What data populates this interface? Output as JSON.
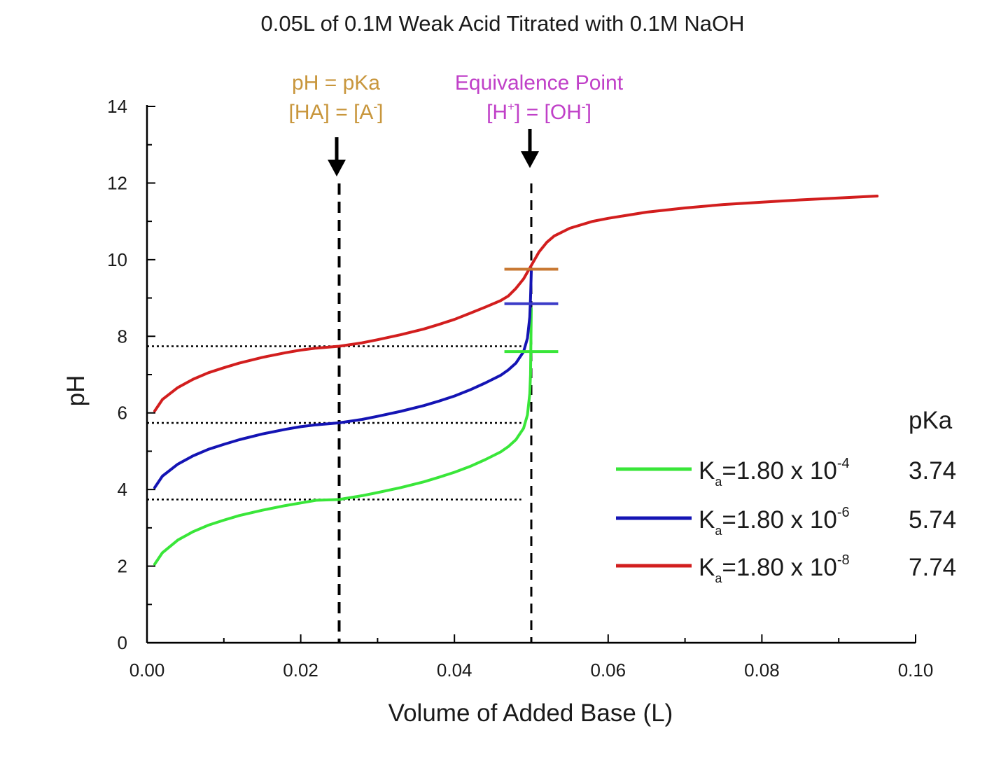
{
  "chart_data": {
    "type": "line",
    "title": "0.05L of 0.1M Weak Acid Titrated with 0.1M NaOH",
    "xlabel": "Volume of Added Base (L)",
    "ylabel": "pH",
    "xlim": [
      0,
      0.1
    ],
    "ylim": [
      0,
      14
    ],
    "x_ticks": [
      "0.00",
      "0.02",
      "0.04",
      "0.06",
      "0.08",
      "0.10"
    ],
    "y_ticks": [
      "0",
      "2",
      "4",
      "6",
      "8",
      "10",
      "12",
      "14"
    ],
    "grid": false,
    "legend_position": "bottom-right",
    "legend_header": "pKa",
    "annotations": {
      "half_equivalence": {
        "line1": "pH = pKa",
        "line2a": "[HA] = [A",
        "line2b": "-",
        "line2c": "]",
        "x": 0.025,
        "color": "#c8963c"
      },
      "equivalence": {
        "line1": "Equivalence Point",
        "line2a": "[H",
        "line2b": "+",
        "line2c": "] = [OH",
        "line2d": "-",
        "line2e": "]",
        "x": 0.05,
        "color": "#c040c8"
      }
    },
    "series": [
      {
        "name": "Ka=1.80 x 10-4",
        "ka_mantissa": "1.80 x 10",
        "ka_exponent": "-4",
        "pka": "3.74",
        "color": "#39e639",
        "marker_y": 7.6,
        "x": [
          0.001,
          0.002,
          0.004,
          0.006,
          0.008,
          0.01,
          0.012,
          0.015,
          0.018,
          0.02,
          0.022,
          0.025,
          0.028,
          0.03,
          0.033,
          0.036,
          0.038,
          0.04,
          0.042,
          0.044,
          0.046,
          0.047,
          0.048,
          0.049,
          0.0495,
          0.0498,
          0.0499,
          0.05
        ],
        "y": [
          2.05,
          2.35,
          2.68,
          2.9,
          3.07,
          3.2,
          3.32,
          3.46,
          3.58,
          3.65,
          3.72,
          3.74,
          3.84,
          3.92,
          4.05,
          4.2,
          4.32,
          4.45,
          4.6,
          4.78,
          4.98,
          5.12,
          5.3,
          5.6,
          5.95,
          6.5,
          7.0,
          8.72
        ]
      },
      {
        "name": "Ka=1.80 x 10-6",
        "ka_mantissa": "1.80 x 10",
        "ka_exponent": "-6",
        "pka": "5.74",
        "color": "#1414b4",
        "marker_y": 8.85,
        "x": [
          0.001,
          0.002,
          0.004,
          0.006,
          0.008,
          0.01,
          0.012,
          0.015,
          0.018,
          0.02,
          0.022,
          0.025,
          0.028,
          0.03,
          0.033,
          0.036,
          0.038,
          0.04,
          0.042,
          0.044,
          0.046,
          0.047,
          0.048,
          0.049,
          0.0495,
          0.0498,
          0.0499,
          0.05
        ],
        "y": [
          4.05,
          4.35,
          4.66,
          4.88,
          5.05,
          5.18,
          5.3,
          5.45,
          5.57,
          5.64,
          5.69,
          5.74,
          5.83,
          5.91,
          6.04,
          6.19,
          6.31,
          6.44,
          6.6,
          6.78,
          6.98,
          7.12,
          7.3,
          7.6,
          7.95,
          8.5,
          9.0,
          9.7
        ]
      },
      {
        "name": "Ka=1.80 x 10-8",
        "ka_mantissa": "1.80 x 10",
        "ka_exponent": "-8",
        "pka": "7.74",
        "color": "#d21e1e",
        "marker_y": 9.75,
        "x": [
          0.001,
          0.002,
          0.004,
          0.006,
          0.008,
          0.01,
          0.012,
          0.015,
          0.018,
          0.02,
          0.022,
          0.025,
          0.028,
          0.03,
          0.033,
          0.036,
          0.038,
          0.04,
          0.042,
          0.044,
          0.046,
          0.047,
          0.048,
          0.049,
          0.05,
          0.051,
          0.052,
          0.053,
          0.055,
          0.058,
          0.06,
          0.065,
          0.07,
          0.075,
          0.08,
          0.085,
          0.09,
          0.095
        ],
        "y": [
          6.05,
          6.35,
          6.66,
          6.88,
          7.05,
          7.18,
          7.3,
          7.45,
          7.57,
          7.64,
          7.69,
          7.74,
          7.83,
          7.91,
          8.04,
          8.19,
          8.31,
          8.44,
          8.6,
          8.76,
          8.93,
          9.05,
          9.25,
          9.5,
          9.85,
          10.2,
          10.45,
          10.62,
          10.82,
          11.0,
          11.08,
          11.24,
          11.35,
          11.44,
          11.5,
          11.56,
          11.61,
          11.66
        ]
      }
    ]
  }
}
